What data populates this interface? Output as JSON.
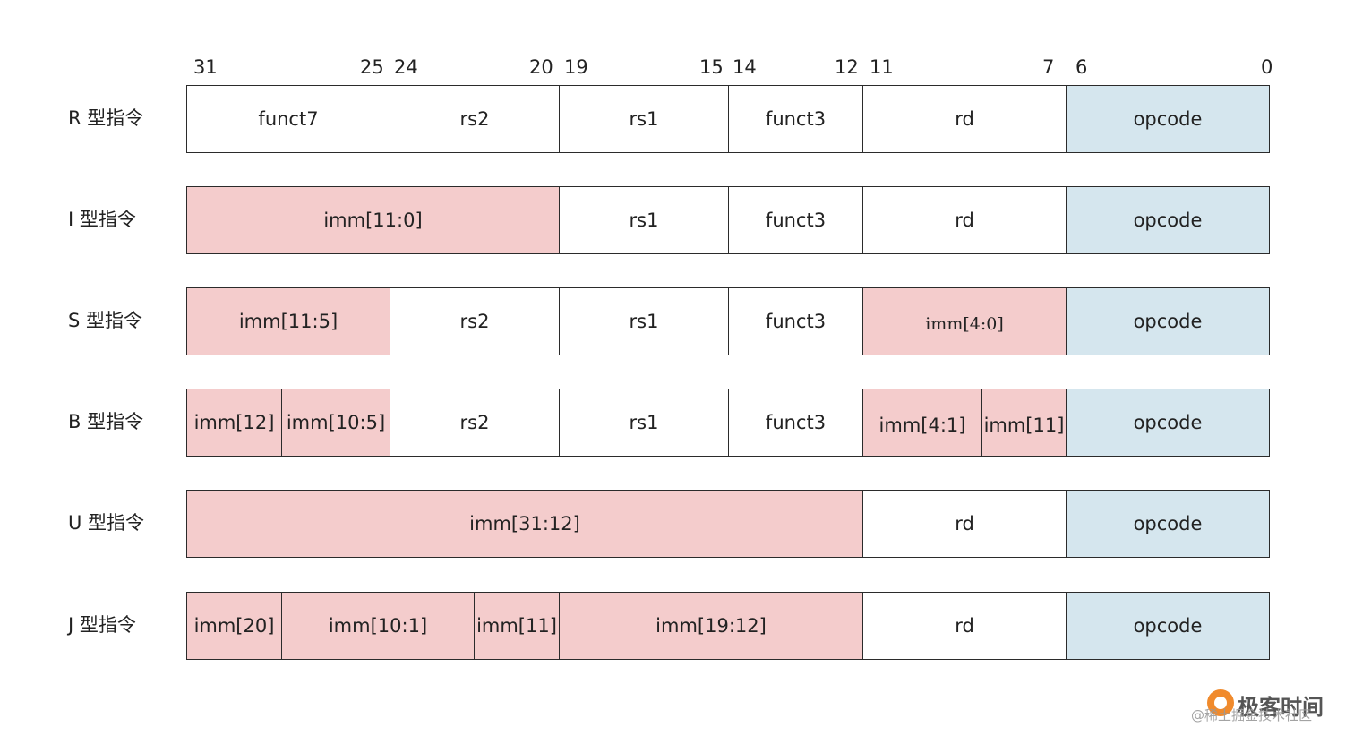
{
  "bit_labels": [
    "31",
    "25",
    "24",
    "20",
    "19",
    "15",
    "14",
    "12",
    "11",
    "7",
    "6",
    "0"
  ],
  "rows": [
    {
      "label": "R 型指令",
      "fields": [
        {
          "text": "funct7",
          "kind": "plain",
          "bits": [
            31,
            25
          ]
        },
        {
          "text": "rs2",
          "kind": "plain",
          "bits": [
            24,
            20
          ]
        },
        {
          "text": "rs1",
          "kind": "plain",
          "bits": [
            19,
            15
          ]
        },
        {
          "text": "funct3",
          "kind": "plain",
          "bits": [
            14,
            12
          ]
        },
        {
          "text": "rd",
          "kind": "plain",
          "bits": [
            11,
            7
          ]
        },
        {
          "text": "opcode",
          "kind": "op",
          "bits": [
            6,
            0
          ]
        }
      ]
    },
    {
      "label": "I 型指令",
      "fields": [
        {
          "text": "imm[11:0]",
          "kind": "imm",
          "bits": [
            31,
            20
          ]
        },
        {
          "text": "rs1",
          "kind": "plain",
          "bits": [
            19,
            15
          ]
        },
        {
          "text": "funct3",
          "kind": "plain",
          "bits": [
            14,
            12
          ]
        },
        {
          "text": "rd",
          "kind": "plain",
          "bits": [
            11,
            7
          ]
        },
        {
          "text": "opcode",
          "kind": "op",
          "bits": [
            6,
            0
          ]
        }
      ]
    },
    {
      "label": "S 型指令",
      "fields": [
        {
          "text": "imm[11:5]",
          "kind": "imm",
          "bits": [
            31,
            25
          ]
        },
        {
          "text": "rs2",
          "kind": "plain",
          "bits": [
            24,
            20
          ]
        },
        {
          "text": "rs1",
          "kind": "plain",
          "bits": [
            19,
            15
          ]
        },
        {
          "text": "funct3",
          "kind": "plain",
          "bits": [
            14,
            12
          ]
        },
        {
          "text": "imm[4:0]",
          "kind": "imm",
          "bits": [
            11,
            7
          ],
          "serif": true
        },
        {
          "text": "opcode",
          "kind": "op",
          "bits": [
            6,
            0
          ]
        }
      ]
    },
    {
      "label": "B 型指令",
      "fields": [
        {
          "text": "imm[12]",
          "kind": "imm",
          "bits": [
            31,
            31
          ]
        },
        {
          "text": "imm[10:5]",
          "kind": "imm",
          "bits": [
            30,
            25
          ]
        },
        {
          "text": "rs2",
          "kind": "plain",
          "bits": [
            24,
            20
          ]
        },
        {
          "text": "rs1",
          "kind": "plain",
          "bits": [
            19,
            15
          ]
        },
        {
          "text": "funct3",
          "kind": "plain",
          "bits": [
            14,
            12
          ]
        },
        {
          "text": "imm[4:1]",
          "kind": "imm",
          "bits": [
            11,
            8
          ],
          "low": true
        },
        {
          "text": "imm[11]",
          "kind": "imm",
          "bits": [
            7,
            7
          ],
          "low": true
        },
        {
          "text": "opcode",
          "kind": "op",
          "bits": [
            6,
            0
          ]
        }
      ]
    },
    {
      "label": "U 型指令",
      "fields": [
        {
          "text": "imm[31:12]",
          "kind": "imm",
          "bits": [
            31,
            12
          ]
        },
        {
          "text": "rd",
          "kind": "plain",
          "bits": [
            11,
            7
          ]
        },
        {
          "text": "opcode",
          "kind": "op",
          "bits": [
            6,
            0
          ]
        }
      ]
    },
    {
      "label": "J 型指令",
      "fields": [
        {
          "text": "imm[20]",
          "kind": "imm",
          "bits": [
            31,
            31
          ]
        },
        {
          "text": "imm[10:1]",
          "kind": "imm",
          "bits": [
            30,
            21
          ]
        },
        {
          "text": "imm[11]",
          "kind": "imm",
          "bits": [
            20,
            20
          ]
        },
        {
          "text": "imm[19:12]",
          "kind": "imm",
          "bits": [
            19,
            12
          ]
        },
        {
          "text": "rd",
          "kind": "plain",
          "bits": [
            11,
            7
          ]
        },
        {
          "text": "opcode",
          "kind": "op",
          "bits": [
            6,
            0
          ]
        }
      ]
    }
  ],
  "colors": {
    "imm": "#f4cccc",
    "opcode": "#d5e6ee",
    "plain": "#ffffff",
    "border": "#2b2b2b"
  },
  "watermark": {
    "title": "极客时间",
    "subtitle": "@稀土掘金技术社区",
    "logo_icon": "geektime-logo-icon"
  }
}
